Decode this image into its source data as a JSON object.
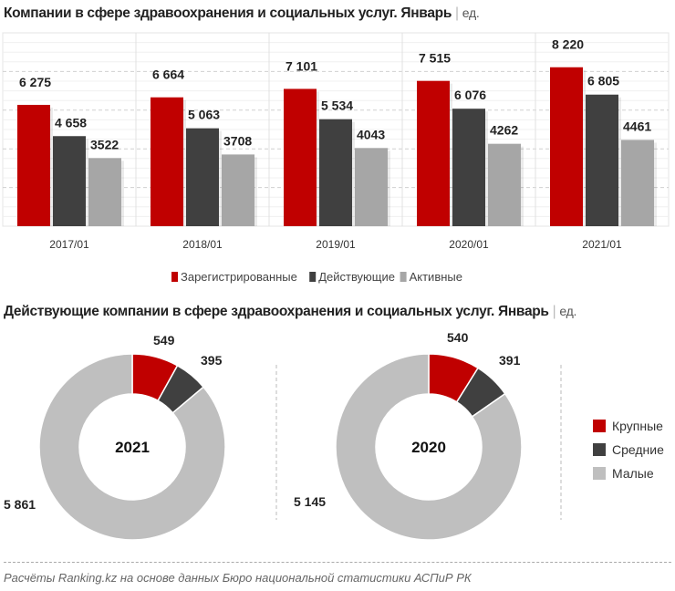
{
  "chart_data": [
    {
      "type": "bar",
      "title": "Компании в сфере здравоохранения и социальных услуг. Январь",
      "unit": "ед.",
      "categories": [
        "2017/01",
        "2018/01",
        "2019/01",
        "2020/01",
        "2021/01"
      ],
      "series": [
        {
          "name": "Зарегистрированные",
          "color": "#c00000",
          "values": [
            6275,
            6664,
            7101,
            7515,
            8220
          ],
          "labels": [
            "6 275",
            "6 664",
            "7 101",
            "7 515",
            "8 220"
          ]
        },
        {
          "name": "Действующие",
          "color": "#404040",
          "values": [
            4658,
            5063,
            5534,
            6076,
            6805
          ],
          "labels": [
            "4 658",
            "5 063",
            "5 534",
            "6 076",
            "6 805"
          ]
        },
        {
          "name": "Активные",
          "color": "#a6a6a6",
          "values": [
            3522,
            3708,
            4043,
            4262,
            4461
          ],
          "labels": [
            "3522",
            "3708",
            "4043",
            "4262",
            "4461"
          ]
        }
      ],
      "ylim": [
        0,
        10000
      ],
      "grid": true,
      "legend": "bottom"
    },
    {
      "type": "pie",
      "title": "Действующие компании в сфере здравоохранения и социальных услуг. Январь",
      "unit": "ед.",
      "legend": "right",
      "categories": [
        "Крупные",
        "Средние",
        "Малые"
      ],
      "colors": [
        "#c00000",
        "#404040",
        "#bfbfbf"
      ],
      "donuts": [
        {
          "center_label": "2021",
          "values": [
            549,
            395,
            5861
          ],
          "labels": [
            "549",
            "395",
            "5 861"
          ]
        },
        {
          "center_label": "2020",
          "values": [
            540,
            391,
            5145
          ],
          "labels": [
            "540",
            "391",
            "5 145"
          ]
        }
      ]
    }
  ],
  "footer": "Расчёты Ranking.kz на основе данных  Бюро национальной  статистики АСПиР РК"
}
